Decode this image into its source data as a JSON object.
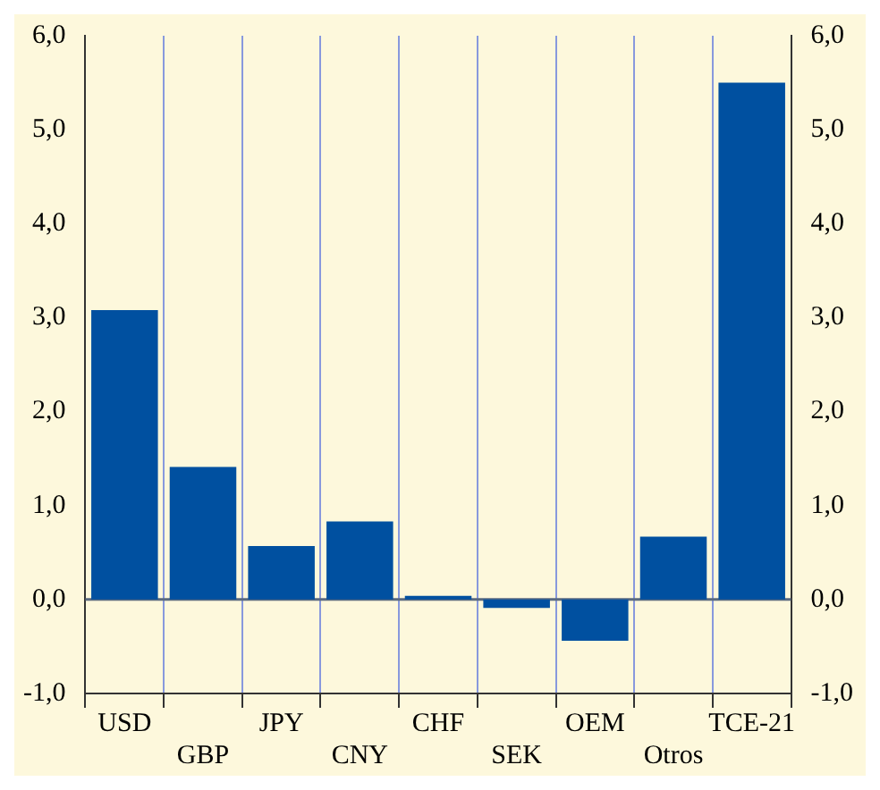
{
  "chart_data": {
    "type": "bar",
    "categories": [
      "USD",
      "GBP",
      "JPY",
      "CNY",
      "CHF",
      "SEK",
      "OEM",
      "Otros",
      "TCE-21"
    ],
    "values": [
      3.08,
      1.41,
      0.57,
      0.83,
      0.04,
      -0.09,
      -0.44,
      0.67,
      5.5
    ],
    "color": "#0050a0",
    "ylim": [
      -1,
      6
    ],
    "yticks": [
      {
        "value": -1,
        "label": "-1,0"
      },
      {
        "value": 0,
        "label": "0,0"
      },
      {
        "value": 1,
        "label": "1,0"
      },
      {
        "value": 2,
        "label": "2,0"
      },
      {
        "value": 3,
        "label": "3,0"
      },
      {
        "value": 4,
        "label": "4,0"
      },
      {
        "value": 5,
        "label": "5,0"
      },
      {
        "value": 6,
        "label": "6,0"
      }
    ],
    "y2lim": [
      -1,
      6
    ],
    "y2ticks": [
      {
        "value": -1,
        "label": "-1,0"
      },
      {
        "value": 0,
        "label": "0,0"
      },
      {
        "value": 1,
        "label": "1,0"
      },
      {
        "value": 2,
        "label": "2,0"
      },
      {
        "value": 3,
        "label": "3,0"
      },
      {
        "value": 4,
        "label": "4,0"
      },
      {
        "value": 5,
        "label": "5,0"
      },
      {
        "value": 6,
        "label": "6,0"
      }
    ],
    "grid": "x",
    "legend": false,
    "ref_lines": [
      {
        "axis": "y",
        "value": 0,
        "color": "#5a6a80"
      }
    ]
  }
}
